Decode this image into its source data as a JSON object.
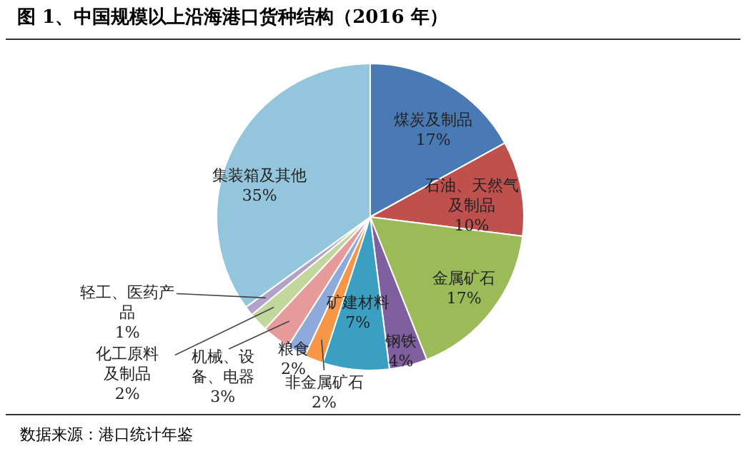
{
  "chart_data": {
    "type": "pie",
    "title": "图 1、中国规模以上沿海港口货种结构（2016 年）",
    "categories": [
      "煤炭及制品",
      "石油、天然气及制品",
      "金属矿石",
      "钢铁",
      "矿建材料",
      "非金属矿石",
      "粮食",
      "机械、设备、电器",
      "化工原料及制品",
      "轻工、医药产品",
      "集装箱及其他"
    ],
    "values": [
      17,
      10,
      17,
      4,
      7,
      2,
      2,
      3,
      2,
      1,
      35
    ],
    "value_labels": [
      "17%",
      "10%",
      "17%",
      "4%",
      "7%",
      "2%",
      "2%",
      "3%",
      "2%",
      "1%",
      "35%"
    ],
    "colors": [
      "#4a7ab5",
      "#c0504d",
      "#9bbb59",
      "#7f5f9f",
      "#3a9fc0",
      "#f79646",
      "#8eaadb",
      "#e69a9a",
      "#c3d69b",
      "#b3a2c7",
      "#93c5dc"
    ],
    "legend": false,
    "annotations": [
      "数据来源：港口统计年鉴"
    ]
  }
}
